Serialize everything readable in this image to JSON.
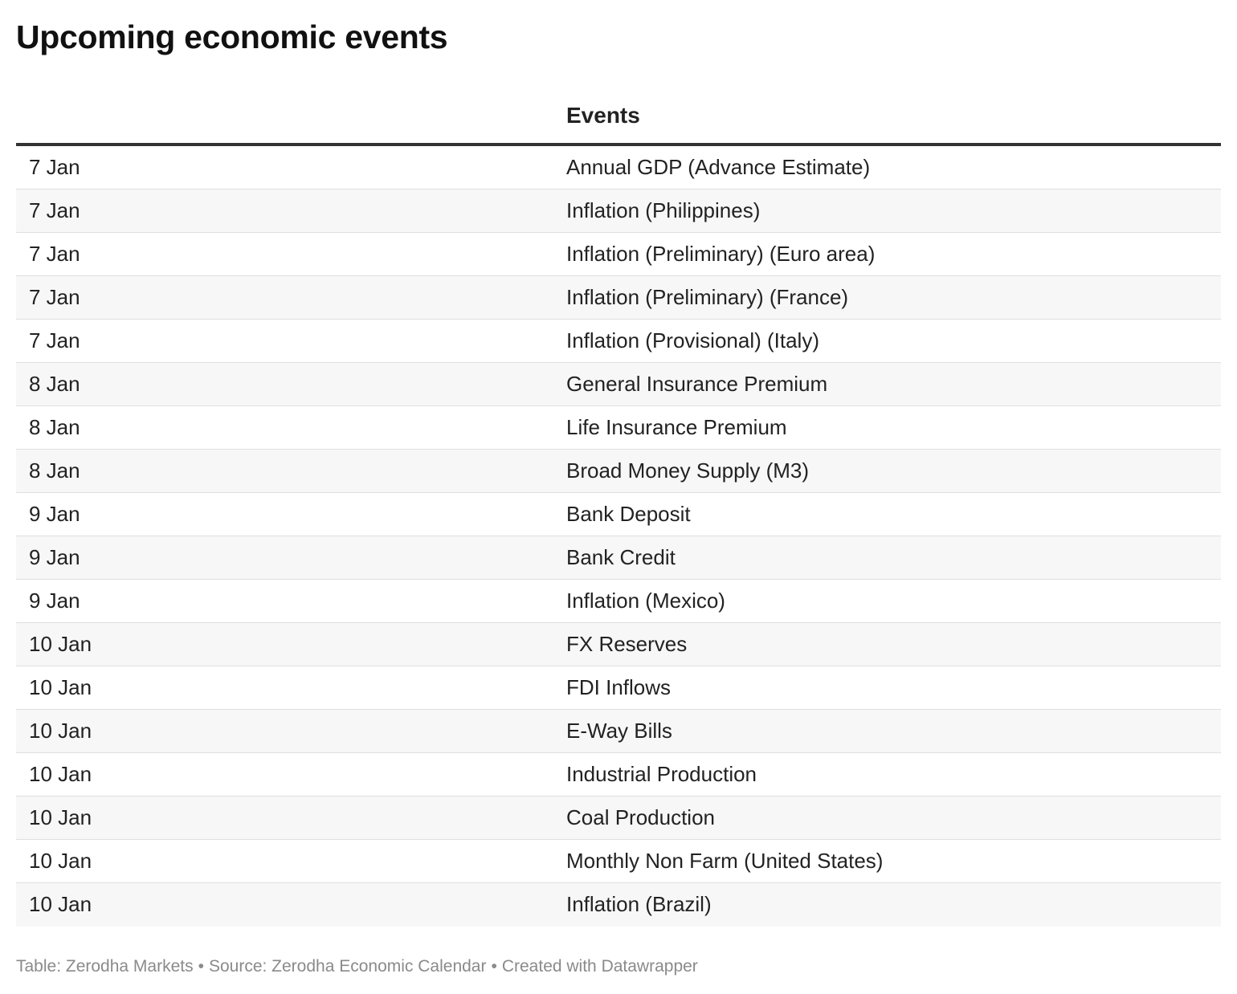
{
  "title": "Upcoming economic events",
  "table": {
    "columns": [
      "",
      "Events"
    ],
    "rows": [
      {
        "date": "7 Jan",
        "event": "Annual GDP (Advance Estimate)"
      },
      {
        "date": "7 Jan",
        "event": "Inflation (Philippines)"
      },
      {
        "date": "7 Jan",
        "event": "Inflation (Preliminary) (Euro area)"
      },
      {
        "date": "7 Jan",
        "event": "Inflation (Preliminary) (France)"
      },
      {
        "date": "7 Jan",
        "event": "Inflation (Provisional) (Italy)"
      },
      {
        "date": "8 Jan",
        "event": "General Insurance Premium"
      },
      {
        "date": "8 Jan",
        "event": "Life Insurance Premium"
      },
      {
        "date": "8 Jan",
        "event": "Broad Money Supply (M3)"
      },
      {
        "date": "9 Jan",
        "event": "Bank Deposit"
      },
      {
        "date": "9 Jan",
        "event": "Bank Credit"
      },
      {
        "date": "9 Jan",
        "event": "Inflation (Mexico)"
      },
      {
        "date": "10 Jan",
        "event": "FX Reserves"
      },
      {
        "date": "10 Jan",
        "event": "FDI Inflows"
      },
      {
        "date": "10 Jan",
        "event": "E-Way Bills"
      },
      {
        "date": "10 Jan",
        "event": "Industrial Production"
      },
      {
        "date": "10 Jan",
        "event": "Coal Production"
      },
      {
        "date": "10 Jan",
        "event": "Monthly Non Farm (United States)"
      },
      {
        "date": "10 Jan",
        "event": "Inflation (Brazil)"
      }
    ]
  },
  "footer": {
    "table_credit": "Table: Zerodha Markets",
    "separator": "•",
    "source": "Source: Zerodha Economic Calendar",
    "created_with": "Created with Datawrapper"
  },
  "colors": {
    "header_rule": "#333333",
    "row_alt_background": "#f7f7f7",
    "row_divider": "#dfdfdf",
    "footer_text": "#8a8a8a"
  }
}
